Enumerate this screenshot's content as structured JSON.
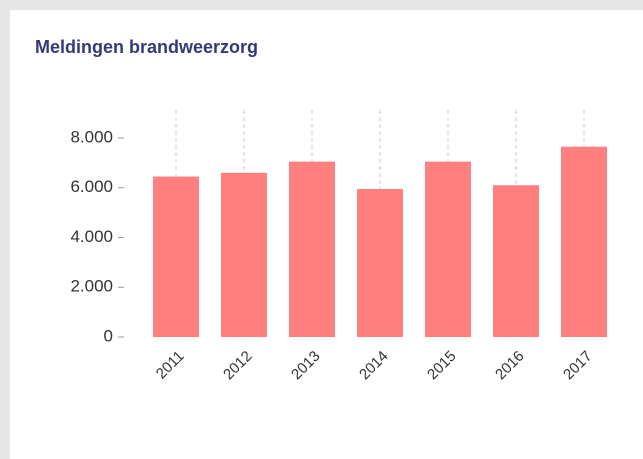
{
  "chart_data": {
    "type": "bar",
    "title": "Meldingen brandweerzorg",
    "categories": [
      "2011",
      "2012",
      "2013",
      "2014",
      "2015",
      "2016",
      "2017"
    ],
    "values": [
      6450,
      6600,
      7050,
      5950,
      7050,
      6100,
      7650
    ],
    "color": "#ff7f7f",
    "ylim": [
      0,
      8000
    ],
    "yticks": [
      0,
      {
        "value": 2000,
        "label": "2.000"
      },
      {
        "value": 4000,
        "label": "4.000"
      },
      {
        "value": 6000,
        "label": "6.000"
      },
      {
        "value": 8000,
        "label": "8.000"
      }
    ],
    "grid": true
  }
}
